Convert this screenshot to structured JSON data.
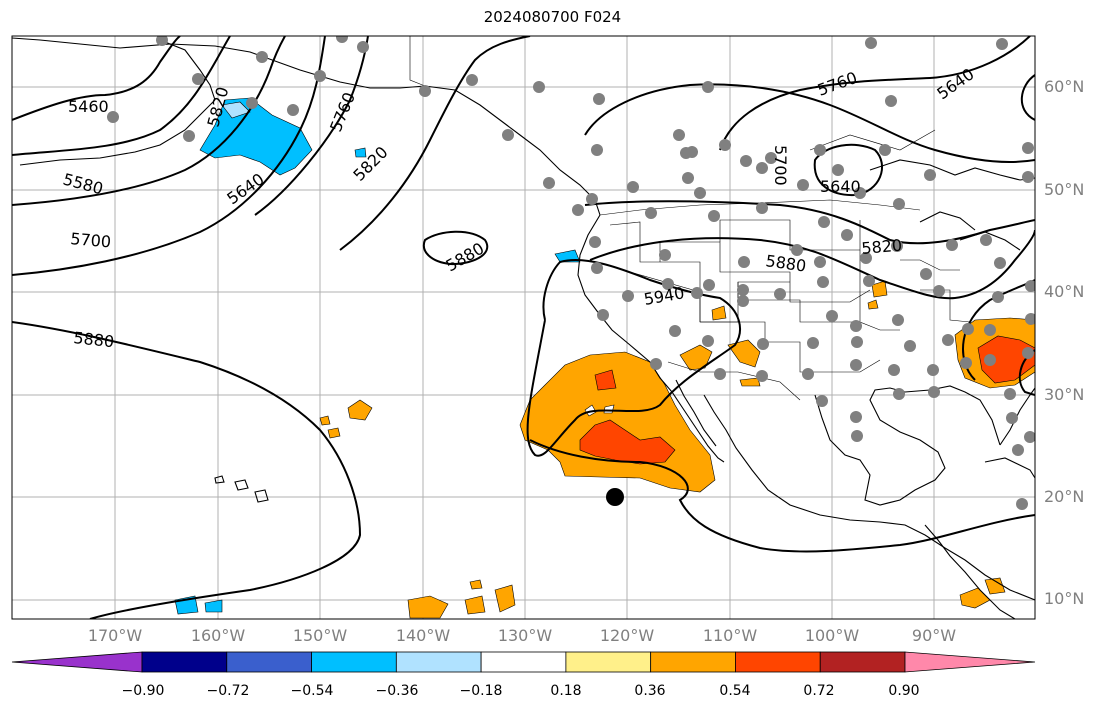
{
  "title": "2024080700 F024",
  "lat_labels": [
    "60°N",
    "50°N",
    "40°N",
    "30°N",
    "20°N",
    "10°N"
  ],
  "lon_labels": [
    "170°W",
    "160°W",
    "150°W",
    "140°W",
    "130°W",
    "120°W",
    "110°W",
    "100°W",
    "90°W"
  ],
  "contour_labels": [
    "5460",
    "5580",
    "5700",
    "5880",
    "5640",
    "5760",
    "5820",
    "5880",
    "5940",
    "5820",
    "5880",
    "5760",
    "5640",
    "5700",
    "5640",
    "5820"
  ],
  "colorbar": {
    "tick_labels": [
      "−0.90",
      "−0.72",
      "−0.54",
      "−0.36",
      "−0.18",
      "0.18",
      "0.36",
      "0.54",
      "0.72",
      "0.90"
    ],
    "colors": [
      "#9932cc",
      "#00008b",
      "#3a5fcd",
      "#00bfff",
      "#b0e2ff",
      "#ffffff",
      "#fff08a",
      "#ffa500",
      "#ff4500",
      "#b22222",
      "#ff88aa"
    ]
  },
  "marker": {
    "label": "black-dot",
    "color": "#000000"
  },
  "station_color": "#808080"
}
